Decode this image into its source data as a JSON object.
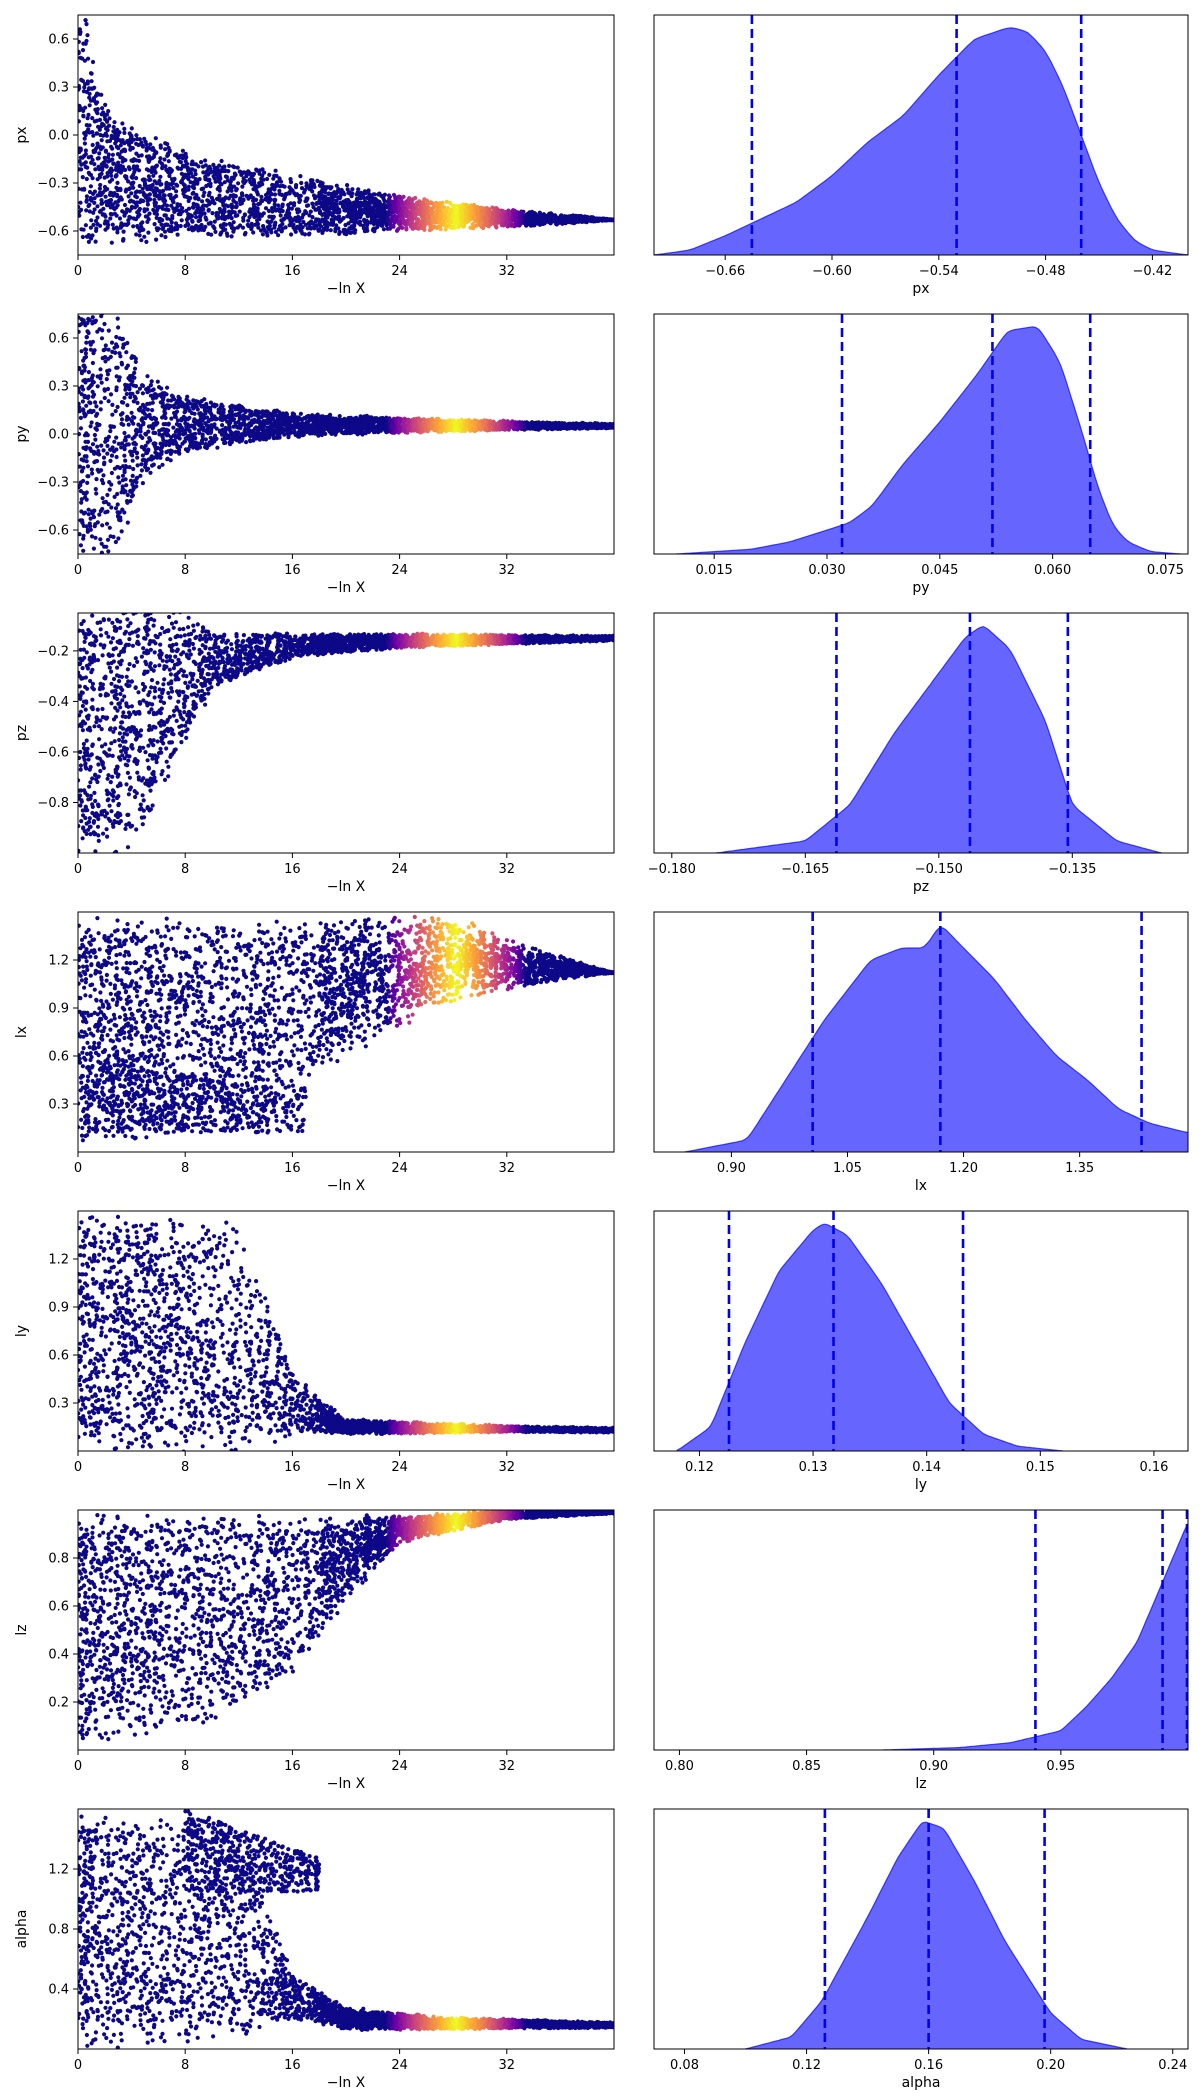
{
  "chart_data": [
    {
      "type": "scatter",
      "param": "px",
      "ylabel": "px",
      "xlabel": "−ln X",
      "xlim": [
        0,
        40
      ],
      "ylim": [
        -0.75,
        0.75
      ],
      "xticks": [
        "0",
        "8",
        "16",
        "24",
        "32"
      ],
      "xtick_values": [
        0,
        8,
        16,
        24,
        32
      ],
      "yticks": [
        "0.6",
        "0.3",
        "0.0",
        "−0.3",
        "−0.6"
      ],
      "ytick_values": [
        0.6,
        0.3,
        0.0,
        -0.3,
        -0.6
      ],
      "trace": {
        "center": [
          [
            0,
            0.3
          ],
          [
            1,
            -0.1
          ],
          [
            3,
            -0.3
          ],
          [
            8,
            -0.37
          ],
          [
            16,
            -0.44
          ],
          [
            24,
            -0.49
          ],
          [
            32,
            -0.52
          ],
          [
            40,
            -0.53
          ]
        ],
        "hw": [
          [
            0,
            1.0
          ],
          [
            1,
            0.65
          ],
          [
            2,
            0.45
          ],
          [
            4,
            0.38
          ],
          [
            8,
            0.28
          ],
          [
            16,
            0.2
          ],
          [
            24,
            0.12
          ],
          [
            32,
            0.06
          ],
          [
            38,
            0.02
          ],
          [
            40,
            0.0
          ]
        ]
      }
    },
    {
      "type": "area",
      "param": "px",
      "xlabel": "px",
      "xlim": [
        -0.7,
        -0.4
      ],
      "xticks": [
        "−0.66",
        "−0.60",
        "−0.54",
        "−0.48",
        "−0.42"
      ],
      "xtick_values": [
        -0.66,
        -0.6,
        -0.54,
        -0.48,
        -0.42
      ],
      "quantiles": [
        -0.645,
        -0.53,
        -0.46
      ],
      "density": [
        [
          -0.7,
          0.0
        ],
        [
          -0.68,
          0.02
        ],
        [
          -0.66,
          0.08
        ],
        [
          -0.64,
          0.15
        ],
        [
          -0.62,
          0.22
        ],
        [
          -0.6,
          0.33
        ],
        [
          -0.58,
          0.47
        ],
        [
          -0.56,
          0.58
        ],
        [
          -0.54,
          0.75
        ],
        [
          -0.52,
          0.9
        ],
        [
          -0.5,
          0.95
        ],
        [
          -0.49,
          0.93
        ],
        [
          -0.48,
          0.85
        ],
        [
          -0.47,
          0.7
        ],
        [
          -0.46,
          0.5
        ],
        [
          -0.45,
          0.3
        ],
        [
          -0.44,
          0.15
        ],
        [
          -0.43,
          0.06
        ],
        [
          -0.42,
          0.02
        ],
        [
          -0.4,
          0.0
        ]
      ]
    },
    {
      "type": "scatter",
      "param": "py",
      "ylabel": "py",
      "xlabel": "−ln X",
      "xlim": [
        0,
        40
      ],
      "ylim": [
        -0.75,
        0.75
      ],
      "xticks": [
        "0",
        "8",
        "16",
        "24",
        "32"
      ],
      "xtick_values": [
        0,
        8,
        16,
        24,
        32
      ],
      "yticks": [
        "0.6",
        "0.3",
        "0.0",
        "−0.3",
        "−0.6"
      ],
      "ytick_values": [
        0.6,
        0.3,
        0.0,
        -0.3,
        -0.6
      ],
      "trace": {
        "center": [
          [
            0,
            0.0
          ],
          [
            8,
            0.06
          ],
          [
            40,
            0.05
          ]
        ],
        "hw": [
          [
            0,
            0.9
          ],
          [
            3,
            0.75
          ],
          [
            5,
            0.35
          ],
          [
            8,
            0.18
          ],
          [
            16,
            0.08
          ],
          [
            24,
            0.05
          ],
          [
            32,
            0.03
          ],
          [
            40,
            0.015
          ]
        ]
      }
    },
    {
      "type": "area",
      "param": "py",
      "xlabel": "py",
      "xlim": [
        0.007,
        0.078
      ],
      "xticks": [
        "0.015",
        "0.030",
        "0.045",
        "0.060",
        "0.075"
      ],
      "xtick_values": [
        0.015,
        0.03,
        0.045,
        0.06,
        0.075
      ],
      "quantiles": [
        0.032,
        0.052,
        0.065
      ],
      "density": [
        [
          0.01,
          0.0
        ],
        [
          0.02,
          0.02
        ],
        [
          0.025,
          0.05
        ],
        [
          0.03,
          0.1
        ],
        [
          0.033,
          0.13
        ],
        [
          0.036,
          0.2
        ],
        [
          0.04,
          0.37
        ],
        [
          0.045,
          0.55
        ],
        [
          0.05,
          0.75
        ],
        [
          0.054,
          0.93
        ],
        [
          0.058,
          0.95
        ],
        [
          0.061,
          0.8
        ],
        [
          0.064,
          0.5
        ],
        [
          0.066,
          0.28
        ],
        [
          0.068,
          0.12
        ],
        [
          0.07,
          0.05
        ],
        [
          0.073,
          0.01
        ],
        [
          0.077,
          0.0
        ]
      ]
    },
    {
      "type": "scatter",
      "param": "pz",
      "ylabel": "pz",
      "xlabel": "−ln X",
      "xlim": [
        0,
        40
      ],
      "ylim": [
        -1.0,
        -0.05
      ],
      "xticks": [
        "0",
        "8",
        "16",
        "24",
        "32"
      ],
      "xtick_values": [
        0,
        8,
        16,
        24,
        32
      ],
      "yticks": [
        "−0.2",
        "−0.4",
        "−0.6",
        "−0.8"
      ],
      "ytick_values": [
        -0.2,
        -0.4,
        -0.6,
        -0.8
      ],
      "trace": {
        "center": [
          [
            0,
            -0.55
          ],
          [
            4,
            -0.5
          ],
          [
            7,
            -0.35
          ],
          [
            10,
            -0.24
          ],
          [
            16,
            -0.18
          ],
          [
            24,
            -0.16
          ],
          [
            40,
            -0.15
          ]
        ],
        "hw": [
          [
            0,
            0.5
          ],
          [
            4,
            0.5
          ],
          [
            7,
            0.35
          ],
          [
            10,
            0.12
          ],
          [
            16,
            0.05
          ],
          [
            24,
            0.03
          ],
          [
            32,
            0.02
          ],
          [
            40,
            0.01
          ]
        ]
      }
    },
    {
      "type": "area",
      "param": "pz",
      "xlabel": "pz",
      "xlim": [
        -0.182,
        -0.122
      ],
      "xticks": [
        "−0.180",
        "−0.165",
        "−0.150",
        "−0.135"
      ],
      "xtick_values": [
        -0.18,
        -0.165,
        -0.15,
        -0.135
      ],
      "quantiles": [
        -0.1615,
        -0.1465,
        -0.1355
      ],
      "density": [
        [
          -0.175,
          0.0
        ],
        [
          -0.165,
          0.05
        ],
        [
          -0.16,
          0.2
        ],
        [
          -0.155,
          0.5
        ],
        [
          -0.15,
          0.75
        ],
        [
          -0.147,
          0.9
        ],
        [
          -0.145,
          0.95
        ],
        [
          -0.142,
          0.85
        ],
        [
          -0.138,
          0.55
        ],
        [
          -0.135,
          0.2
        ],
        [
          -0.13,
          0.05
        ],
        [
          -0.125,
          0.0
        ]
      ]
    },
    {
      "type": "scatter",
      "param": "lx",
      "ylabel": "lx",
      "xlabel": "−ln X",
      "xlim": [
        0,
        40
      ],
      "ylim": [
        0.0,
        1.5
      ],
      "xticks": [
        "0",
        "8",
        "16",
        "24",
        "32"
      ],
      "xtick_values": [
        0,
        8,
        16,
        24,
        32
      ],
      "yticks": [
        "1.2",
        "0.9",
        "0.6",
        "0.3"
      ],
      "ytick_values": [
        1.2,
        0.9,
        0.6,
        0.3
      ],
      "trace": {
        "center": [
          [
            0,
            0.75
          ],
          [
            12,
            0.8
          ],
          [
            20,
            1.05
          ],
          [
            28,
            1.2
          ],
          [
            36,
            1.15
          ],
          [
            40,
            1.12
          ]
        ],
        "hw": [
          [
            0,
            0.75
          ],
          [
            12,
            0.65
          ],
          [
            20,
            0.45
          ],
          [
            28,
            0.28
          ],
          [
            34,
            0.12
          ],
          [
            40,
            0.0
          ]
        ]
      },
      "branch": {
        "x0": 0.5,
        "x1": 17,
        "ylo": 0.12,
        "yhi": 0.55,
        "taper": 0.35
      }
    },
    {
      "type": "area",
      "param": "lx",
      "xlabel": "lx",
      "xlim": [
        0.8,
        1.49
      ],
      "xticks": [
        "0.90",
        "1.05",
        "1.20",
        "1.35"
      ],
      "xtick_values": [
        0.9,
        1.05,
        1.2,
        1.35
      ],
      "quantiles": [
        1.005,
        1.17,
        1.43
      ],
      "density": [
        [
          0.84,
          0.0
        ],
        [
          0.92,
          0.05
        ],
        [
          0.97,
          0.3
        ],
        [
          1.02,
          0.55
        ],
        [
          1.08,
          0.8
        ],
        [
          1.12,
          0.85
        ],
        [
          1.15,
          0.85
        ],
        [
          1.17,
          0.95
        ],
        [
          1.2,
          0.85
        ],
        [
          1.24,
          0.72
        ],
        [
          1.28,
          0.55
        ],
        [
          1.32,
          0.4
        ],
        [
          1.36,
          0.3
        ],
        [
          1.4,
          0.18
        ],
        [
          1.44,
          0.12
        ],
        [
          1.49,
          0.08
        ]
      ]
    },
    {
      "type": "scatter",
      "param": "ly",
      "ylabel": "ly",
      "xlabel": "−ln X",
      "xlim": [
        0,
        40
      ],
      "ylim": [
        0.0,
        1.5
      ],
      "xticks": [
        "0",
        "8",
        "16",
        "24",
        "32"
      ],
      "xtick_values": [
        0,
        8,
        16,
        24,
        32
      ],
      "yticks": [
        "1.2",
        "0.9",
        "0.6",
        "0.3"
      ],
      "ytick_values": [
        1.2,
        0.9,
        0.6,
        0.3
      ],
      "trace": {
        "center": [
          [
            0,
            0.75
          ],
          [
            12,
            0.7
          ],
          [
            16,
            0.3
          ],
          [
            20,
            0.15
          ],
          [
            40,
            0.13
          ]
        ],
        "hw": [
          [
            0,
            0.75
          ],
          [
            12,
            0.75
          ],
          [
            16,
            0.2
          ],
          [
            20,
            0.05
          ],
          [
            32,
            0.02
          ],
          [
            40,
            0.015
          ]
        ]
      }
    },
    {
      "type": "area",
      "param": "ly",
      "xlabel": "ly",
      "xlim": [
        0.116,
        0.163
      ],
      "xticks": [
        "0.12",
        "0.13",
        "0.14",
        "0.15",
        "0.16"
      ],
      "xtick_values": [
        0.12,
        0.13,
        0.14,
        0.15,
        0.16
      ],
      "quantiles": [
        0.1226,
        0.1318,
        0.1432
      ],
      "density": [
        [
          0.118,
          0.0
        ],
        [
          0.121,
          0.1
        ],
        [
          0.124,
          0.45
        ],
        [
          0.127,
          0.75
        ],
        [
          0.13,
          0.92
        ],
        [
          0.131,
          0.95
        ],
        [
          0.133,
          0.9
        ],
        [
          0.136,
          0.7
        ],
        [
          0.139,
          0.45
        ],
        [
          0.142,
          0.2
        ],
        [
          0.145,
          0.07
        ],
        [
          0.148,
          0.02
        ],
        [
          0.152,
          0.0
        ]
      ]
    },
    {
      "type": "scatter",
      "param": "lz",
      "ylabel": "lz",
      "xlabel": "−ln X",
      "xlim": [
        0,
        40
      ],
      "ylim": [
        0.0,
        1.0
      ],
      "xticks": [
        "0",
        "8",
        "16",
        "24",
        "32"
      ],
      "xtick_values": [
        0,
        8,
        16,
        24,
        32
      ],
      "yticks": [
        "0.8",
        "0.6",
        "0.4",
        "0.2"
      ],
      "ytick_values": [
        0.8,
        0.6,
        0.4,
        0.2
      ],
      "trace": {
        "center": [
          [
            0,
            0.5
          ],
          [
            10,
            0.55
          ],
          [
            16,
            0.65
          ],
          [
            20,
            0.8
          ],
          [
            24,
            0.92
          ],
          [
            32,
            0.98
          ],
          [
            40,
            0.99
          ]
        ],
        "hw": [
          [
            0,
            0.5
          ],
          [
            10,
            0.45
          ],
          [
            16,
            0.35
          ],
          [
            20,
            0.18
          ],
          [
            24,
            0.06
          ],
          [
            32,
            0.02
          ],
          [
            40,
            0.005
          ]
        ]
      }
    },
    {
      "type": "area",
      "param": "lz",
      "xlabel": "lz",
      "xlim": [
        0.79,
        1.0
      ],
      "xticks": [
        "0.80",
        "0.85",
        "0.90",
        "0.95"
      ],
      "xtick_values": [
        0.8,
        0.85,
        0.9,
        0.95
      ],
      "quantiles": [
        0.94,
        0.99,
        1.0
      ],
      "density": [
        [
          0.88,
          0.0
        ],
        [
          0.91,
          0.01
        ],
        [
          0.93,
          0.03
        ],
        [
          0.95,
          0.08
        ],
        [
          0.96,
          0.18
        ],
        [
          0.97,
          0.3
        ],
        [
          0.98,
          0.45
        ],
        [
          0.99,
          0.7
        ],
        [
          1.0,
          0.95
        ]
      ]
    },
    {
      "type": "scatter",
      "param": "alpha",
      "ylabel": "alpha",
      "xlabel": "−ln X",
      "xlim": [
        0,
        40
      ],
      "ylim": [
        0.0,
        1.6
      ],
      "xticks": [
        "0",
        "8",
        "16",
        "24",
        "32"
      ],
      "xtick_values": [
        0,
        8,
        16,
        24,
        32
      ],
      "yticks": [
        "1.2",
        "0.8",
        "0.4"
      ],
      "ytick_values": [
        1.2,
        0.8,
        0.4
      ],
      "trace": {
        "center": [
          [
            0,
            0.8
          ],
          [
            12,
            0.75
          ],
          [
            16,
            0.35
          ],
          [
            20,
            0.2
          ],
          [
            28,
            0.17
          ],
          [
            40,
            0.16
          ]
        ],
        "hw": [
          [
            0,
            0.8
          ],
          [
            12,
            0.75
          ],
          [
            16,
            0.15
          ],
          [
            20,
            0.08
          ],
          [
            28,
            0.04
          ],
          [
            40,
            0.02
          ]
        ]
      },
      "branch": {
        "x0": 8,
        "x1": 18,
        "ylo": 1.05,
        "yhi": 1.6,
        "taper": 0.6
      }
    },
    {
      "type": "area",
      "param": "alpha",
      "xlabel": "alpha",
      "xlim": [
        0.07,
        0.245
      ],
      "xticks": [
        "0.08",
        "0.12",
        "0.16",
        "0.20",
        "0.24"
      ],
      "xtick_values": [
        0.08,
        0.12,
        0.16,
        0.2,
        0.24
      ],
      "quantiles": [
        0.126,
        0.16,
        0.198
      ],
      "density": [
        [
          0.1,
          0.0
        ],
        [
          0.115,
          0.05
        ],
        [
          0.125,
          0.2
        ],
        [
          0.14,
          0.55
        ],
        [
          0.15,
          0.8
        ],
        [
          0.158,
          0.95
        ],
        [
          0.165,
          0.92
        ],
        [
          0.175,
          0.7
        ],
        [
          0.185,
          0.45
        ],
        [
          0.2,
          0.15
        ],
        [
          0.21,
          0.04
        ],
        [
          0.225,
          0.0
        ]
      ]
    }
  ],
  "colors": {
    "fill": "#6666ff",
    "line": "#0000ff",
    "vline": "#0000ee",
    "scatter_base": "#0d0887",
    "colormap": [
      "#0d0887",
      "#6a00a8",
      "#b12a90",
      "#e16462",
      "#fca636",
      "#f0f921"
    ]
  }
}
